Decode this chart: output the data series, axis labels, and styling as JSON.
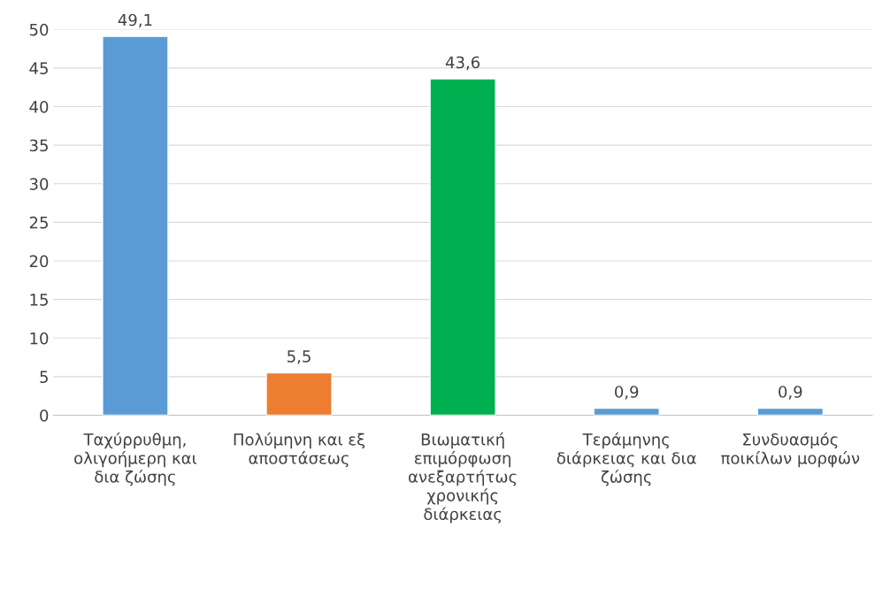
{
  "chart_data": {
    "type": "bar",
    "categories": [
      "Ταχύρρυθμη, ολιγοήμερη και δια ζώσης",
      "Πολύμηνη και εξ αποστάσεως",
      "Βιωματική επιμόρφωση ανεξαρτήτως χρονικής διάρκειας",
      "Τεράμηνης διάρκειας και δια ζώσης",
      "Συνδυασμός ποικίλων μορφών"
    ],
    "values": [
      49.1,
      5.5,
      43.6,
      0.9,
      0.9
    ],
    "colors": [
      "#5b9bd5",
      "#ed7d31",
      "#00b050",
      "#5b9bd5",
      "#5b9bd5"
    ],
    "value_labels": [
      "49,1",
      "5,5",
      "43,6",
      "0,9",
      "0,9"
    ],
    "ylim": [
      0,
      50
    ],
    "yticks": [
      0,
      5,
      10,
      15,
      20,
      25,
      30,
      35,
      40,
      45,
      50
    ],
    "grid": "y",
    "legend": false
  }
}
